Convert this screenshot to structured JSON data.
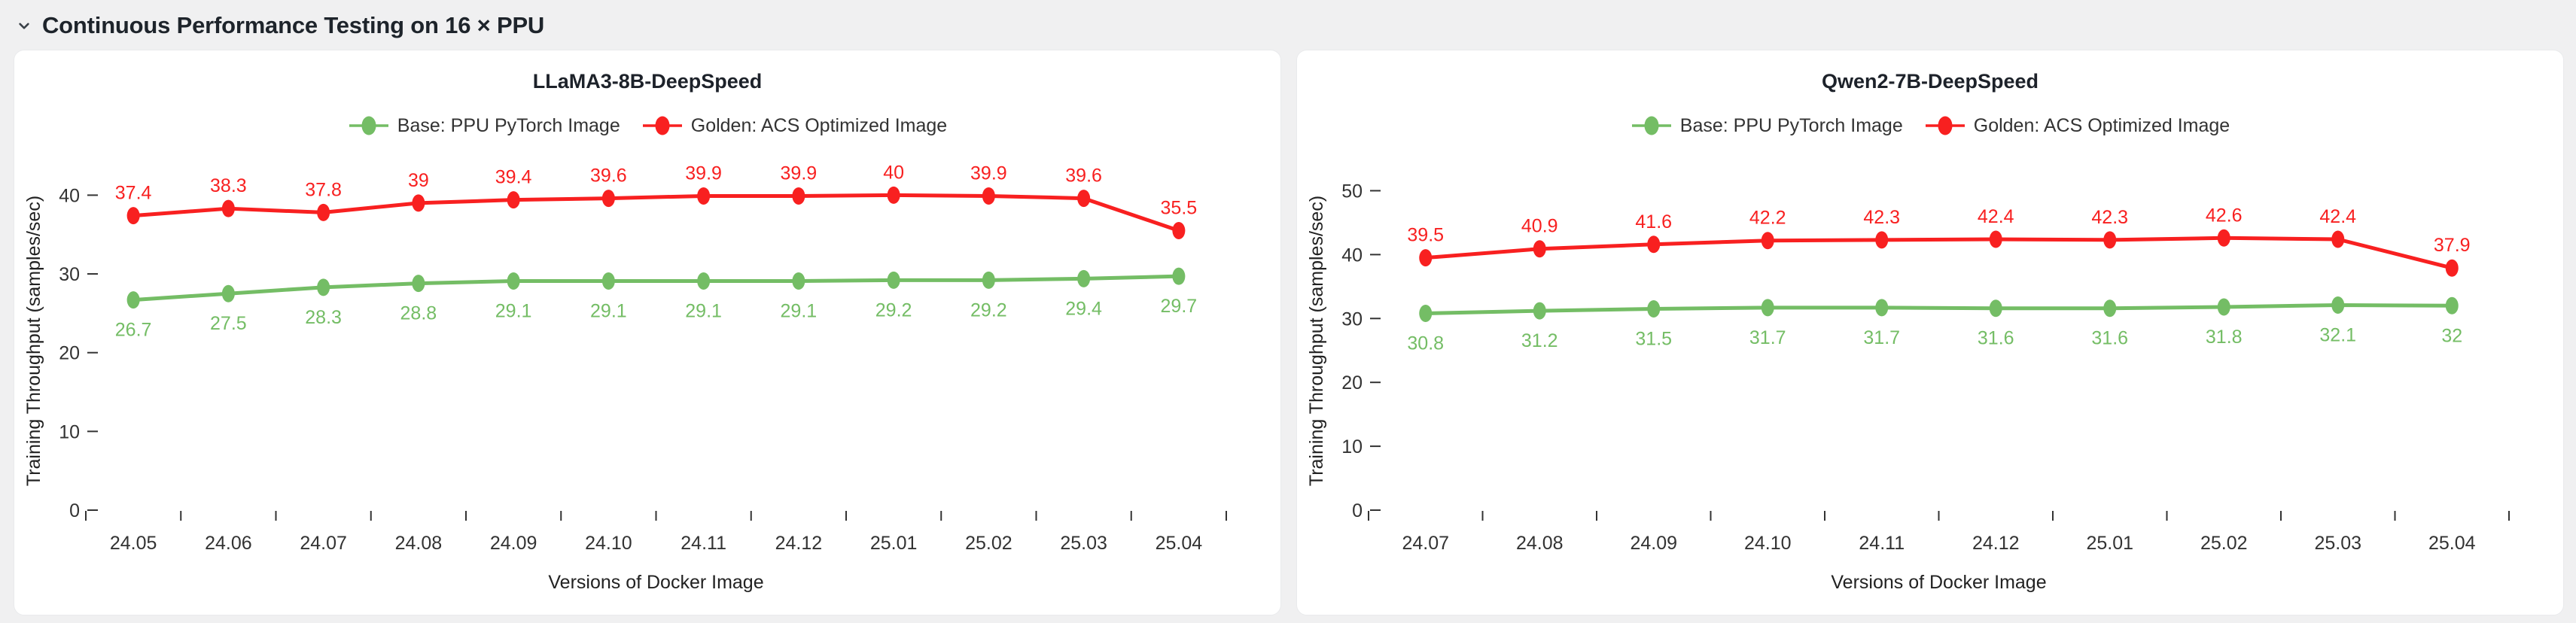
{
  "header": {
    "title": "Continuous Performance Testing on 16 × PPU",
    "collapse_icon": "chevron-down-icon"
  },
  "colors": {
    "page_bg": "#f0f0f1",
    "panel_bg": "#ffffff",
    "panel_border": "#e9eaec",
    "axis_text": "#333333",
    "label_text": "#222222",
    "title_text": "#1d222a",
    "base_series": "#74bd65",
    "golden_series": "#f82020"
  },
  "legend": {
    "base_label": "Base: PPU PyTorch Image",
    "golden_label": "Golden: ACS Optimized Image"
  },
  "chart_data": [
    {
      "type": "line",
      "title": "LLaMA3-8B-DeepSpeed",
      "xlabel": "Versions of Docker Image",
      "ylabel": "Training Throughput (samples/sec)",
      "categories": [
        "24.05",
        "24.06",
        "24.07",
        "24.08",
        "24.09",
        "24.10",
        "24.11",
        "24.12",
        "25.01",
        "25.02",
        "25.03",
        "25.04"
      ],
      "yticks": [
        0,
        10,
        20,
        30,
        40
      ],
      "ylim": [
        0,
        43
      ],
      "grid": false,
      "legend_position": "top",
      "series": [
        {
          "name": "Base: PPU PyTorch Image",
          "color": "#74bd65",
          "label_position": "below",
          "values": [
            26.7,
            27.5,
            28.3,
            28.8,
            29.1,
            29.1,
            29.1,
            29.1,
            29.2,
            29.2,
            29.4,
            29.7
          ]
        },
        {
          "name": "Golden: ACS Optimized Image",
          "color": "#f82020",
          "label_position": "above",
          "values": [
            37.4,
            38.3,
            37.8,
            39,
            39.4,
            39.6,
            39.9,
            39.9,
            40,
            39.9,
            39.6,
            35.5
          ]
        }
      ]
    },
    {
      "type": "line",
      "title": "Qwen2-7B-DeepSpeed",
      "xlabel": "Versions of Docker Image",
      "ylabel": "Training Throughput (samples/sec)",
      "categories": [
        "24.07",
        "24.08",
        "24.09",
        "24.10",
        "24.11",
        "24.12",
        "25.01",
        "25.02",
        "25.03",
        "25.04"
      ],
      "yticks": [
        0,
        10,
        20,
        30,
        40,
        50
      ],
      "ylim": [
        0,
        53
      ],
      "grid": false,
      "legend_position": "top",
      "series": [
        {
          "name": "Base: PPU PyTorch Image",
          "color": "#74bd65",
          "label_position": "below",
          "values": [
            30.8,
            31.2,
            31.5,
            31.7,
            31.7,
            31.6,
            31.6,
            31.8,
            32.1,
            32
          ]
        },
        {
          "name": "Golden: ACS Optimized Image",
          "color": "#f82020",
          "label_position": "above",
          "values": [
            39.5,
            40.9,
            41.6,
            42.2,
            42.3,
            42.4,
            42.3,
            42.6,
            42.4,
            37.9
          ]
        }
      ]
    }
  ]
}
